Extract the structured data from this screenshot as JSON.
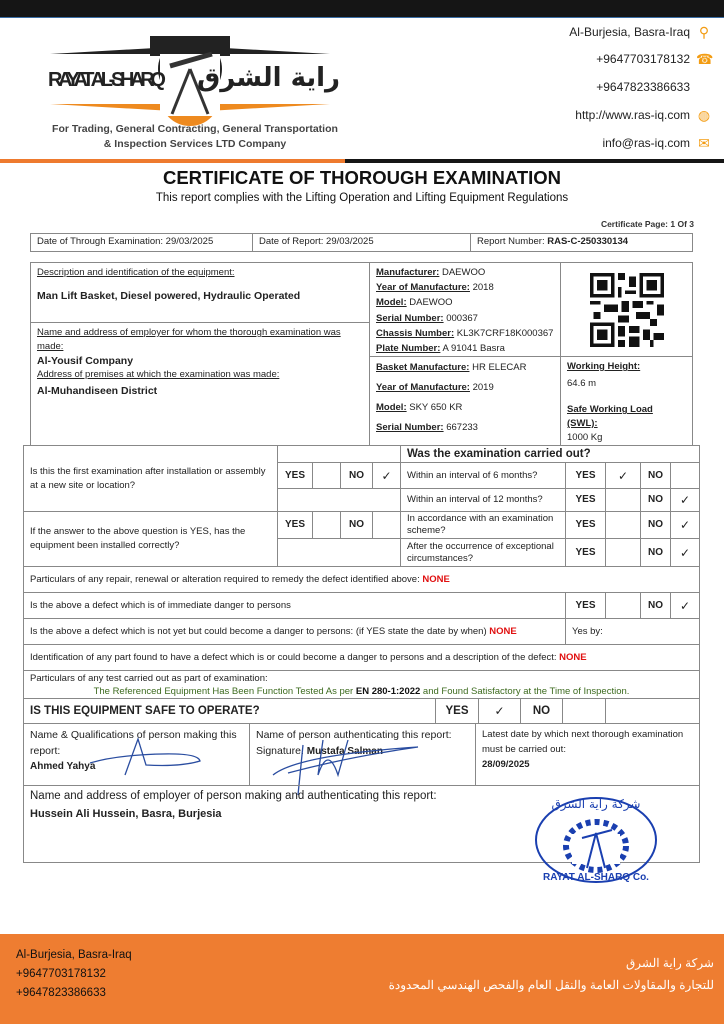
{
  "header": {
    "logo_text_en": "RAYAT AL-SHARQ",
    "logo_text_ar": "راية الشرق",
    "tagline_line1": "For Trading, General Contracting, General Transportation",
    "tagline_line2": "& Inspection Services LTD Company",
    "contacts": [
      {
        "text": "Al-Burjesia, Basra-Iraq",
        "icon": "location-pin-icon"
      },
      {
        "text": "+9647703178132",
        "icon": "phone-icon"
      },
      {
        "text": "+9647823386633",
        "icon": ""
      },
      {
        "text": "http://www.ras-iq.com",
        "icon": "globe-icon"
      },
      {
        "text": "info@ras-iq.com",
        "icon": "envelope-icon"
      }
    ],
    "accent_color": "#ee7a2e"
  },
  "title": "CERTIFICATE OF THOROUGH EXAMINATION",
  "subtitle": "This report complies with the Lifting Operation and Lifting Equipment Regulations",
  "certificate_page": "Certificate Page: 1 Of 3",
  "info_row": {
    "exam_date": "Date of Through Examination: 29/03/2025",
    "report_date": "Date of Report: 29/03/2025",
    "report_number_label": "Report Number: ",
    "report_number": "RAS-C-250330134"
  },
  "equipment": {
    "desc_label": "Description and identification of the equipment:",
    "desc_value": "Man Lift Basket, Diesel powered, Hydraulic Operated",
    "employer_label": "Name and address of employer for whom the thorough examination was made:",
    "employer_value": "Al-Yousif Company",
    "premises_label": "Address of premises at which the examination was made:",
    "premises_value": "Al-Muhandiseen District",
    "vehicle": [
      {
        "label": "Manufacturer:",
        "value": " DAEWOO"
      },
      {
        "label": "Year of Manufacture:",
        "value": " 2018"
      },
      {
        "label": "Model:",
        "value": " DAEWOO"
      },
      {
        "label": "Serial Number:",
        "value": " 000367"
      },
      {
        "label": "Chassis Number:",
        "value": " KL3K7CRF18K000367"
      },
      {
        "label": "Plate Number:",
        "value": " A 91041 Basra"
      }
    ],
    "basket": [
      {
        "label": "Basket Manufacture:",
        "value": " HR ELECAR"
      },
      {
        "label": "Year of Manufacture:",
        "value": " 2019"
      },
      {
        "label": "Model:",
        "value": " SKY 650 KR"
      },
      {
        "label": "Serial Number:",
        "value": " 667233"
      }
    ],
    "working_height_label": "Working Height:",
    "working_height": "64.6 m",
    "swl_label": "Safe Working Load (SWL):",
    "swl": "1000 Kg"
  },
  "exam": {
    "yes": "YES",
    "no": "NO",
    "check": "✓",
    "q_first": "Is this the first examination after installation or assembly at a new site or location?",
    "q_installed": "If the answer to the above question is YES, has the equipment been installed correctly?",
    "carried_out_title": "Was the examination carried out?",
    "carried": [
      {
        "q": "Within an interval of 6 months?",
        "answer": "yes"
      },
      {
        "q": "Within an interval of 12 months?",
        "answer": "no"
      },
      {
        "q": "In accordance with an examination scheme?",
        "answer": "no"
      },
      {
        "q": "After the occurrence of exceptional circumstances?",
        "answer": "no"
      }
    ],
    "first_answer": "no",
    "repair_label": "Particulars of any repair, renewal or alteration required to remedy the defect identified above: ",
    "repair_value": "NONE",
    "immediate_label": "Is the above a defect which is of immediate danger to persons",
    "immediate_answer": "no",
    "future_label": "Is the above a defect which is not yet but could become a danger to persons: (if YES state the date by when) ",
    "future_value": "NONE",
    "yes_by": "Yes by:",
    "ident_label": "Identification of any part found to have a defect which is or could become a danger to persons and a description of the defect: ",
    "ident_value": "NONE",
    "test_label": "Particulars of any test carried out as part of examination:",
    "test_pre": "The Referenced Equipment Has Been Function Tested As per ",
    "test_std": "EN 280-1:2022",
    "test_post": " and Found Satisfactory at the Time of Inspection.",
    "safe_label": "IS THIS EQUIPMENT SAFE TO OPERATE?",
    "safe_answer": "yes"
  },
  "signatures": {
    "maker_label": "Name & Qualifications of person making this report:",
    "maker_name": "Ahmed Yahya",
    "auth_label": "Name of person authenticating this report:",
    "auth_sig_label": "Signature: ",
    "auth_name": "Mustafa Salman",
    "next_label": "Latest date by which next thorough examination must be carried out:",
    "next_date": "28/09/2025",
    "employer_label": "Name and address of employer of person making and authenticating this report:",
    "employer_value": "Hussein Ali Hussein, Basra, Burjesia",
    "stamp_text": "RAYAT AL-SHARQ Co. شركة راية الشرق"
  },
  "footer": {
    "address": "Al-Burjesia, Basra-Iraq",
    "phone1": "+9647703178132",
    "phone2": "+9647823386633",
    "ar_line1": "شركة راية الشرق",
    "ar_line2": "للتجارة والمقاولات العامة والنقل العام والفحص الهندسي المحدودة"
  }
}
